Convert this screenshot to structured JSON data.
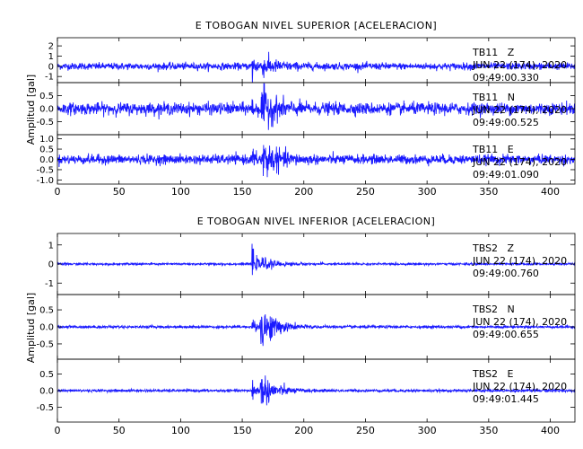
{
  "chart_data": [
    {
      "type": "line",
      "title": "E TOBOGAN NIVEL SUPERIOR [ACELERACION]",
      "ylabel": "Amplitud [gal]",
      "xlim": [
        0,
        420
      ],
      "x_ticks": [
        0,
        50,
        100,
        150,
        200,
        250,
        300,
        350,
        400
      ],
      "series_color": "#1a1aff",
      "panels": [
        {
          "channel": "TB11   Z",
          "date": "JUN 22 (174), 2020",
          "time": "09:49:00.330",
          "ylim": [
            -1.6,
            2.8
          ],
          "y_ticks": [
            -1,
            0,
            1,
            2
          ],
          "y_tick_labels": [
            "-1",
            "0",
            "1",
            "2"
          ],
          "noise": 0.3,
          "p_onset": 158.5,
          "p_amp": 2.2,
          "s_onset": 166,
          "s_amp": 0.8
        },
        {
          "channel": "TB11   N",
          "date": "JUN 22 (174), 2020",
          "time": "09:49:00.525",
          "ylim": [
            -1.0,
            1.0
          ],
          "y_ticks": [
            -0.5,
            0.0,
            0.5
          ],
          "y_tick_labels": [
            "-0.5",
            "0.0",
            "0.5"
          ],
          "noise": 0.2,
          "p_onset": 158.5,
          "p_amp": 0.35,
          "s_onset": 165,
          "s_amp": 0.7
        },
        {
          "channel": "TB11   E",
          "date": "JUN 22 (174), 2020",
          "time": "09:49:01.090",
          "ylim": [
            -1.2,
            1.2
          ],
          "y_ticks": [
            -1.0,
            -0.5,
            0.0,
            0.5,
            1.0
          ],
          "y_tick_labels": [
            "-1.0",
            "-0.5",
            "0.0",
            "0.5",
            "1.0"
          ],
          "noise": 0.2,
          "p_onset": 158.5,
          "p_amp": 0.6,
          "s_onset": 165,
          "s_amp": 0.95
        }
      ]
    },
    {
      "type": "line",
      "title": "E TOBOGAN NIVEL INFERIOR [ACELERACION]",
      "ylabel": "Amplitud [gal]",
      "xlim": [
        0,
        420
      ],
      "x_ticks": [
        0,
        50,
        100,
        150,
        200,
        250,
        300,
        350,
        400
      ],
      "series_color": "#1a1aff",
      "panels": [
        {
          "channel": "TBS2   Z",
          "date": "JUN 22 (174), 2020",
          "time": "09:49:00.760",
          "ylim": [
            -1.6,
            1.6
          ],
          "y_ticks": [
            -1,
            0,
            1
          ],
          "y_tick_labels": [
            "-1",
            "0",
            "1"
          ],
          "noise": 0.05,
          "p_onset": 158.5,
          "p_amp": 1.45,
          "s_onset": 164,
          "s_amp": 0.35
        },
        {
          "channel": "TBS2   N",
          "date": "JUN 22 (174), 2020",
          "time": "09:49:00.655",
          "ylim": [
            -0.95,
            0.95
          ],
          "y_ticks": [
            -0.5,
            0.0,
            0.5
          ],
          "y_tick_labels": [
            "-0.5",
            "0.0",
            "0.5"
          ],
          "noise": 0.035,
          "p_onset": 158.5,
          "p_amp": 0.55,
          "s_onset": 164,
          "s_amp": 0.7
        },
        {
          "channel": "TBS2   E",
          "date": "JUN 22 (174), 2020",
          "time": "09:49:01.445",
          "ylim": [
            -0.95,
            0.95
          ],
          "y_ticks": [
            -0.5,
            0.0,
            0.5
          ],
          "y_tick_labels": [
            "-0.5",
            "0.0",
            "0.5"
          ],
          "noise": 0.035,
          "p_onset": 158.5,
          "p_amp": 0.7,
          "s_onset": 164,
          "s_amp": 0.55
        }
      ]
    }
  ]
}
